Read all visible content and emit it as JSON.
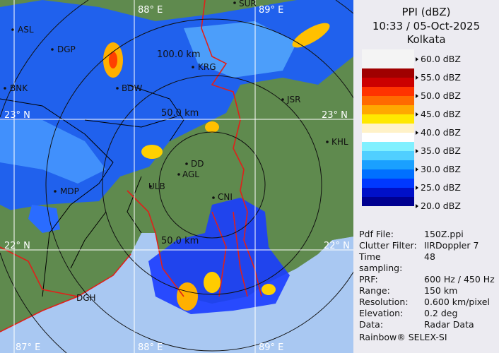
{
  "header": {
    "product": "PPI (dBZ)",
    "datetime": "10:33 / 05-Oct-2025",
    "station": "Kolkata"
  },
  "legend": {
    "ticks": [
      "60.0 dBZ",
      "55.0 dBZ",
      "50.0 dBZ",
      "45.0 dBZ",
      "40.0 dBZ",
      "35.0 dBZ",
      "30.0 dBZ",
      "25.0 dBZ",
      "20.0 dBZ"
    ],
    "colors": [
      "#f4f4f4",
      "#a00000",
      "#cc0000",
      "#ff3300",
      "#ff6a00",
      "#ffa800",
      "#ffe800",
      "#fff2c8",
      "#ffffff",
      "#80f0ff",
      "#50cfff",
      "#1aa0ff",
      "#0070ff",
      "#0038ff",
      "#0010c8",
      "#000090"
    ]
  },
  "info": [
    {
      "key": "Pdf File:",
      "value": "150Z.ppi"
    },
    {
      "key": "Clutter Filter:",
      "value": "IIRDoppler 7"
    },
    {
      "key": "Time sampling:",
      "value": "48"
    },
    {
      "key": "PRF:",
      "value": "600 Hz / 450 Hz"
    },
    {
      "key": "Range:",
      "value": "150 km"
    },
    {
      "key": "Resolution:",
      "value": "0.600 km/pixel"
    },
    {
      "key": "Elevation:",
      "value": "0.2 deg"
    },
    {
      "key": "Data:",
      "value": "Radar Data"
    }
  ],
  "credit": "Rainbow® SELEX-SI",
  "map": {
    "land_color": "#5f8a4e",
    "sea_color": "#a9c8f2",
    "grid_labels": [
      "88° E",
      "89° E",
      "23° N",
      "23° N",
      "22° N",
      "22° N",
      "87° E",
      "88° E",
      "89° E"
    ],
    "range_labels": [
      "100.0 km",
      "50.0 km",
      "50.0 km"
    ],
    "stations": [
      "SUR",
      "ASL",
      "DGP",
      "BNK",
      "BDW",
      "KRG",
      "JSR",
      "KHL",
      "DD",
      "AGL",
      "ULB",
      "CNI",
      "MDP",
      "DGH"
    ]
  }
}
